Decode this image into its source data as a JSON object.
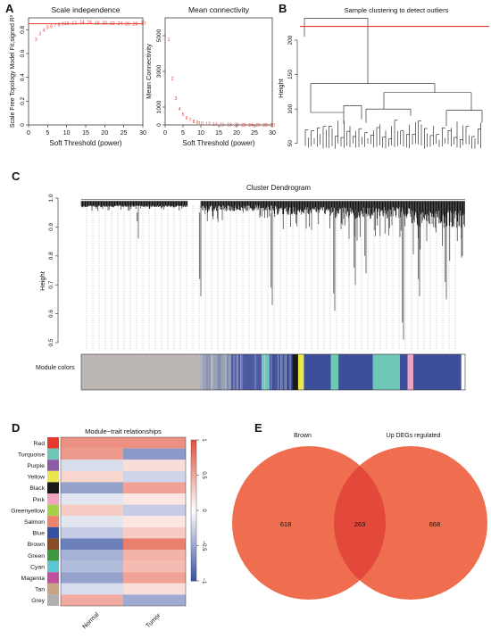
{
  "panels": {
    "a": "A",
    "b": "B",
    "c": "C",
    "d": "D",
    "e": "E"
  },
  "chart_data": [
    {
      "type": "scatter",
      "panel": "A",
      "title": "Scale independence",
      "xlabel": "Soft Threshold (power)",
      "ylabel": "Scale Free Topology Model Fit,signed R²",
      "xlim": [
        0,
        30
      ],
      "ylim": [
        0,
        0.9
      ],
      "xticks": [
        0,
        5,
        10,
        15,
        20,
        25,
        30
      ],
      "yticks": [
        0.0,
        0.2,
        0.4,
        0.6,
        0.8
      ],
      "cutoff_line": 0.85,
      "cutoff_color": "#e8382a",
      "points": [
        {
          "x": 2,
          "y": 0.72
        },
        {
          "x": 3,
          "y": 0.77
        },
        {
          "x": 4,
          "y": 0.8
        },
        {
          "x": 5,
          "y": 0.82
        },
        {
          "x": 6,
          "y": 0.83
        },
        {
          "x": 7,
          "y": 0.84
        },
        {
          "x": 8,
          "y": 0.845
        },
        {
          "x": 9,
          "y": 0.85
        },
        {
          "x": 10,
          "y": 0.855
        },
        {
          "x": 12,
          "y": 0.86
        },
        {
          "x": 14,
          "y": 0.865
        },
        {
          "x": 16,
          "y": 0.865
        },
        {
          "x": 18,
          "y": 0.86
        },
        {
          "x": 20,
          "y": 0.86
        },
        {
          "x": 22,
          "y": 0.855
        },
        {
          "x": 24,
          "y": 0.855
        },
        {
          "x": 26,
          "y": 0.85
        },
        {
          "x": 28,
          "y": 0.85
        },
        {
          "x": 30,
          "y": 0.86
        }
      ]
    },
    {
      "type": "scatter",
      "panel": "A",
      "title": "Mean connectivity",
      "xlabel": "Soft Threshold (power)",
      "ylabel": "Mean Connectivity",
      "xlim": [
        0,
        30
      ],
      "ylim": [
        0,
        6000
      ],
      "xticks": [
        0,
        5,
        10,
        15,
        20,
        25,
        30
      ],
      "yticks": [
        0,
        1000,
        3000,
        5000
      ],
      "points": [
        {
          "x": 1,
          "y": 4800
        },
        {
          "x": 2,
          "y": 2600
        },
        {
          "x": 3,
          "y": 1500
        },
        {
          "x": 4,
          "y": 900
        },
        {
          "x": 5,
          "y": 600
        },
        {
          "x": 6,
          "y": 400
        },
        {
          "x": 7,
          "y": 280
        },
        {
          "x": 8,
          "y": 200
        },
        {
          "x": 9,
          "y": 150
        },
        {
          "x": 10,
          "y": 110
        },
        {
          "x": 12,
          "y": 70
        },
        {
          "x": 14,
          "y": 45
        },
        {
          "x": 16,
          "y": 30
        },
        {
          "x": 18,
          "y": 22
        },
        {
          "x": 20,
          "y": 16
        },
        {
          "x": 22,
          "y": 12
        },
        {
          "x": 24,
          "y": 9
        },
        {
          "x": 26,
          "y": 7
        },
        {
          "x": 28,
          "y": 5
        },
        {
          "x": 30,
          "y": 4
        }
      ]
    },
    {
      "type": "dendrogram",
      "panel": "B",
      "title": "Sample clustering to detect outliers",
      "ylabel": "Height",
      "ylim": [
        25,
        235
      ],
      "yticks": [
        50,
        100,
        150,
        200
      ],
      "cut_height": 220,
      "cut_color": "#e8382a",
      "n_leaves": 60
    },
    {
      "type": "dendrogram",
      "panel": "C",
      "title": "Cluster Dendrogram",
      "ylabel": "Height",
      "ylim": [
        0.5,
        1.0
      ],
      "yticks": [
        0.5,
        0.6,
        0.7,
        0.8,
        0.9,
        1.0
      ],
      "color_bar_label": "Module colors",
      "module_blocks": [
        {
          "color": "#bdb7b3",
          "w": 0.31
        },
        {
          "color": "#9aa2b5",
          "w": 0.08
        },
        {
          "color": "#4a58a0",
          "w": 0.08
        },
        {
          "color": "#6fc7b6",
          "w": 0.02
        },
        {
          "color": "#3d4f9a",
          "w": 0.06
        },
        {
          "color": "#1a1a1a",
          "w": 0.015
        },
        {
          "color": "#ece64e",
          "w": 0.015
        },
        {
          "color": "#3d4f9a",
          "w": 0.07
        },
        {
          "color": "#6fc7b6",
          "w": 0.02
        },
        {
          "color": "#3d4f9a",
          "w": 0.09
        },
        {
          "color": "#6fc7b6",
          "w": 0.07
        },
        {
          "color": "#3d4f9a",
          "w": 0.02
        },
        {
          "color": "#f2a3c0",
          "w": 0.015
        },
        {
          "color": "#3d4f9a",
          "w": 0.125
        }
      ]
    },
    {
      "type": "heatmap",
      "panel": "D",
      "title": "Module−trait relationships",
      "columns": [
        "Normal",
        "Tumor"
      ],
      "rows": [
        "Red",
        "Turquoise",
        "Purple",
        "Yellow",
        "Black",
        "Pink",
        "Greenyellow",
        "Salmon",
        "Blue",
        "Brown",
        "Green",
        "Cyan",
        "Magenta",
        "Tan",
        "Grey"
      ],
      "row_colors": [
        "#e63a2e",
        "#6fc7b6",
        "#8e5aa8",
        "#ece64e",
        "#1a1a1a",
        "#f2a3c0",
        "#a6cf4a",
        "#f0826b",
        "#3650a3",
        "#8a4a24",
        "#3f9a3f",
        "#5cc6d6",
        "#c2509e",
        "#c8a482",
        "#b0b0b0"
      ],
      "values": [
        [
          0.65,
          0.65
        ],
        [
          0.6,
          -0.6
        ],
        [
          -0.2,
          0.2
        ],
        [
          0.25,
          -0.25
        ],
        [
          -0.55,
          0.55
        ],
        [
          -0.15,
          0.15
        ],
        [
          0.3,
          -0.3
        ],
        [
          -0.15,
          0.15
        ],
        [
          -0.3,
          0.3
        ],
        [
          -0.75,
          0.75
        ],
        [
          -0.45,
          0.45
        ],
        [
          -0.4,
          0.4
        ],
        [
          -0.55,
          0.55
        ],
        [
          -0.2,
          0.2
        ],
        [
          0.5,
          -0.5
        ]
      ],
      "legend_ticks": [
        "1",
        "0.5",
        "0",
        "−0.5",
        "−1"
      ],
      "color_low": "#3c55a3",
      "color_mid": "#ffffff",
      "color_high": "#e1553f"
    },
    {
      "type": "venn",
      "panel": "E",
      "sets": [
        "Brown",
        "Up DEGs regulated"
      ],
      "left_only": 618,
      "overlap": 263,
      "right_only": 668,
      "circle_color": "#ee6e4f",
      "overlap_color": "#e2493a"
    }
  ]
}
